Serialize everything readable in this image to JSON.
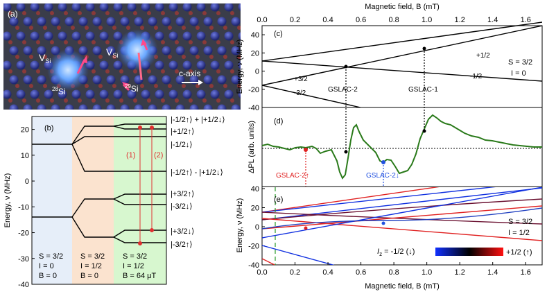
{
  "panel_a": {
    "label": "(a)",
    "vsi_left": "V",
    "vsi_left_sub": "Si",
    "vsi_right": "V",
    "vsi_right_sub": "Si",
    "si28_sup": "28",
    "si28": "Si",
    "si29_sup": "29",
    "si29": "Si",
    "caxis": "c-axis",
    "colors": {
      "background": "#3a3d4a",
      "atom": "#2f3a9a",
      "vacancy": "#5aa0ff",
      "spin": "#ff4a8a"
    }
  },
  "panel_b": {
    "label": "(b)",
    "ylabel": "Energy, ν (MHz)",
    "yticks": [
      "20",
      "10",
      "0",
      "-10",
      "-20",
      "-30",
      "-40"
    ],
    "ylim": [
      -40,
      25
    ],
    "marker1": "(1)",
    "marker2": "(2)",
    "state_labels": [
      "|-1/2↑⟩ + |+1/2↓⟩",
      "|+1/2↑⟩",
      "|-1/2↓⟩",
      "|-1/2↑⟩ - |+1/2↓⟩",
      "|+3/2↑⟩",
      "|-3/2↓⟩",
      "|+3/2↓⟩",
      "|-3/2↑⟩"
    ],
    "col1": {
      "s": "S = 3/2",
      "i": "I = 0",
      "b": "B = 0"
    },
    "col2": {
      "s": "S = 3/2",
      "i": "I = 1/2",
      "b": "B = 0"
    },
    "col3": {
      "s": "S = 3/2",
      "i": "I = 1/2",
      "b": "B = 64 μT"
    },
    "colors": {
      "col1": "#e6eef9",
      "col2": "#fbe3cf",
      "col3": "#d7f7cf",
      "transition": "#e03030"
    }
  },
  "panel_c": {
    "label": "(c)",
    "top_axis_label": "Magnetic field, B (mT)",
    "ylabel": "Energy, ν (MHz)",
    "yticks": [
      "40",
      "20",
      "0",
      "-20",
      "-40"
    ],
    "ylim": [
      -40,
      50
    ],
    "xticks": [
      "0.0",
      "0.2",
      "0.4",
      "0.6",
      "0.8",
      "1.0",
      "1.2",
      "1.4",
      "1.6"
    ],
    "xlim": [
      0,
      1.7
    ],
    "state_labels": [
      "+1/2",
      "-1/2",
      "+3/2",
      "-3/2"
    ],
    "gslac2": "GSLAC-2",
    "gslac1": "GSLAC-1",
    "params": [
      "S = 3/2",
      "I = 0"
    ]
  },
  "panel_d": {
    "label": "(d)",
    "ylabel": "ΔPL (arb. units)",
    "gslac2_up": "GSLAC-2↑",
    "gslac2_down": "GSLAC-2↓",
    "colors": {
      "trace": "#2a7a1a",
      "up": "#e02020",
      "down": "#2050e0"
    }
  },
  "panel_e": {
    "label": "(e)",
    "ylabel": "Energy, ν (MHz)",
    "yticks": [
      "40",
      "20",
      "0",
      "-20",
      "-40"
    ],
    "params": [
      "S = 3/2",
      "I = 1/2"
    ],
    "iz_label": "I",
    "iz_sub": "z",
    "iz_left": " = -1/2 (↓)",
    "iz_right": "+1/2 (↑)",
    "xlabel": "Magnetic field, B (mT)",
    "xticks": [
      "0.0",
      "0.2",
      "0.4",
      "0.6",
      "0.8",
      "1.0",
      "1.2",
      "1.4",
      "1.6"
    ]
  }
}
